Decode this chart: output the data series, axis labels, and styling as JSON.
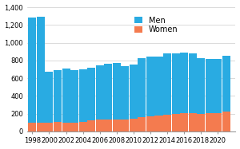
{
  "years": [
    1998,
    1999,
    2000,
    2001,
    2002,
    2003,
    2004,
    2005,
    2006,
    2007,
    2008,
    2009,
    2010,
    2011,
    2012,
    2013,
    2014,
    2015,
    2016,
    2017,
    2018,
    2019,
    2020,
    2021
  ],
  "men": [
    1185,
    1190,
    570,
    585,
    610,
    590,
    585,
    595,
    615,
    630,
    640,
    600,
    605,
    665,
    680,
    670,
    690,
    685,
    685,
    670,
    625,
    615,
    610,
    630
  ],
  "women": [
    95,
    100,
    100,
    105,
    100,
    100,
    110,
    125,
    130,
    130,
    130,
    135,
    145,
    160,
    165,
    175,
    185,
    195,
    205,
    205,
    200,
    205,
    205,
    220
  ],
  "men_color": "#29ABE2",
  "women_color": "#F47B4F",
  "background_color": "#ffffff",
  "grid_color": "#cccccc",
  "ylim": [
    0,
    1400
  ],
  "yticks": [
    0,
    200,
    400,
    600,
    800,
    1000,
    1200,
    1400
  ],
  "legend_men": "Men",
  "legend_women": "Women",
  "bar_width": 0.95
}
